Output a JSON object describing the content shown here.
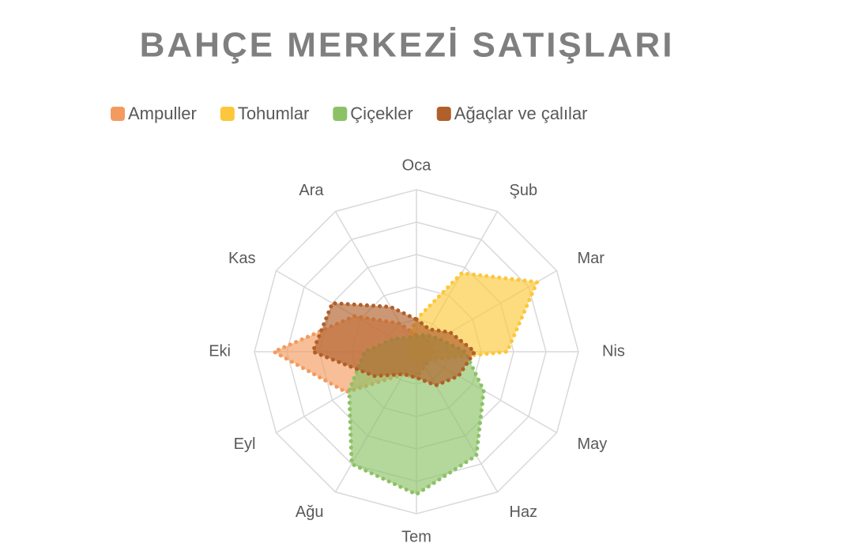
{
  "chart_data": {
    "type": "radar",
    "title": "BAHÇE MERKEZİ SATIŞLARI",
    "categories": [
      "Oca",
      "Şub",
      "Mar",
      "Nis",
      "May",
      "Haz",
      "Tem",
      "Ağu",
      "Eyl",
      "Eki",
      "Kas",
      "Ara"
    ],
    "series": [
      {
        "name": "Ampuller",
        "color": "#f39b5f",
        "values": [
          5,
          5,
          5,
          5,
          5,
          5,
          8,
          8,
          25,
          44,
          22,
          10
        ]
      },
      {
        "name": "Tohumlar",
        "color": "#fcc73a",
        "values": [
          10,
          28,
          43,
          28,
          5,
          2,
          2,
          2,
          2,
          2,
          2,
          5
        ]
      },
      {
        "name": "Çiçekler",
        "color": "#8cc265",
        "values": [
          5,
          6,
          8,
          15,
          24,
          37,
          44,
          40,
          24,
          16,
          8,
          5
        ]
      },
      {
        "name": "Ağaçlar ve çalılar",
        "color": "#b0602a",
        "values": [
          10,
          8,
          12,
          18,
          15,
          12,
          8,
          8,
          15,
          32,
          30,
          16
        ]
      }
    ],
    "ylim": [
      0,
      50
    ],
    "yticks": [
      0,
      10,
      20,
      30,
      40,
      50
    ],
    "grid": true,
    "legend": "top"
  }
}
